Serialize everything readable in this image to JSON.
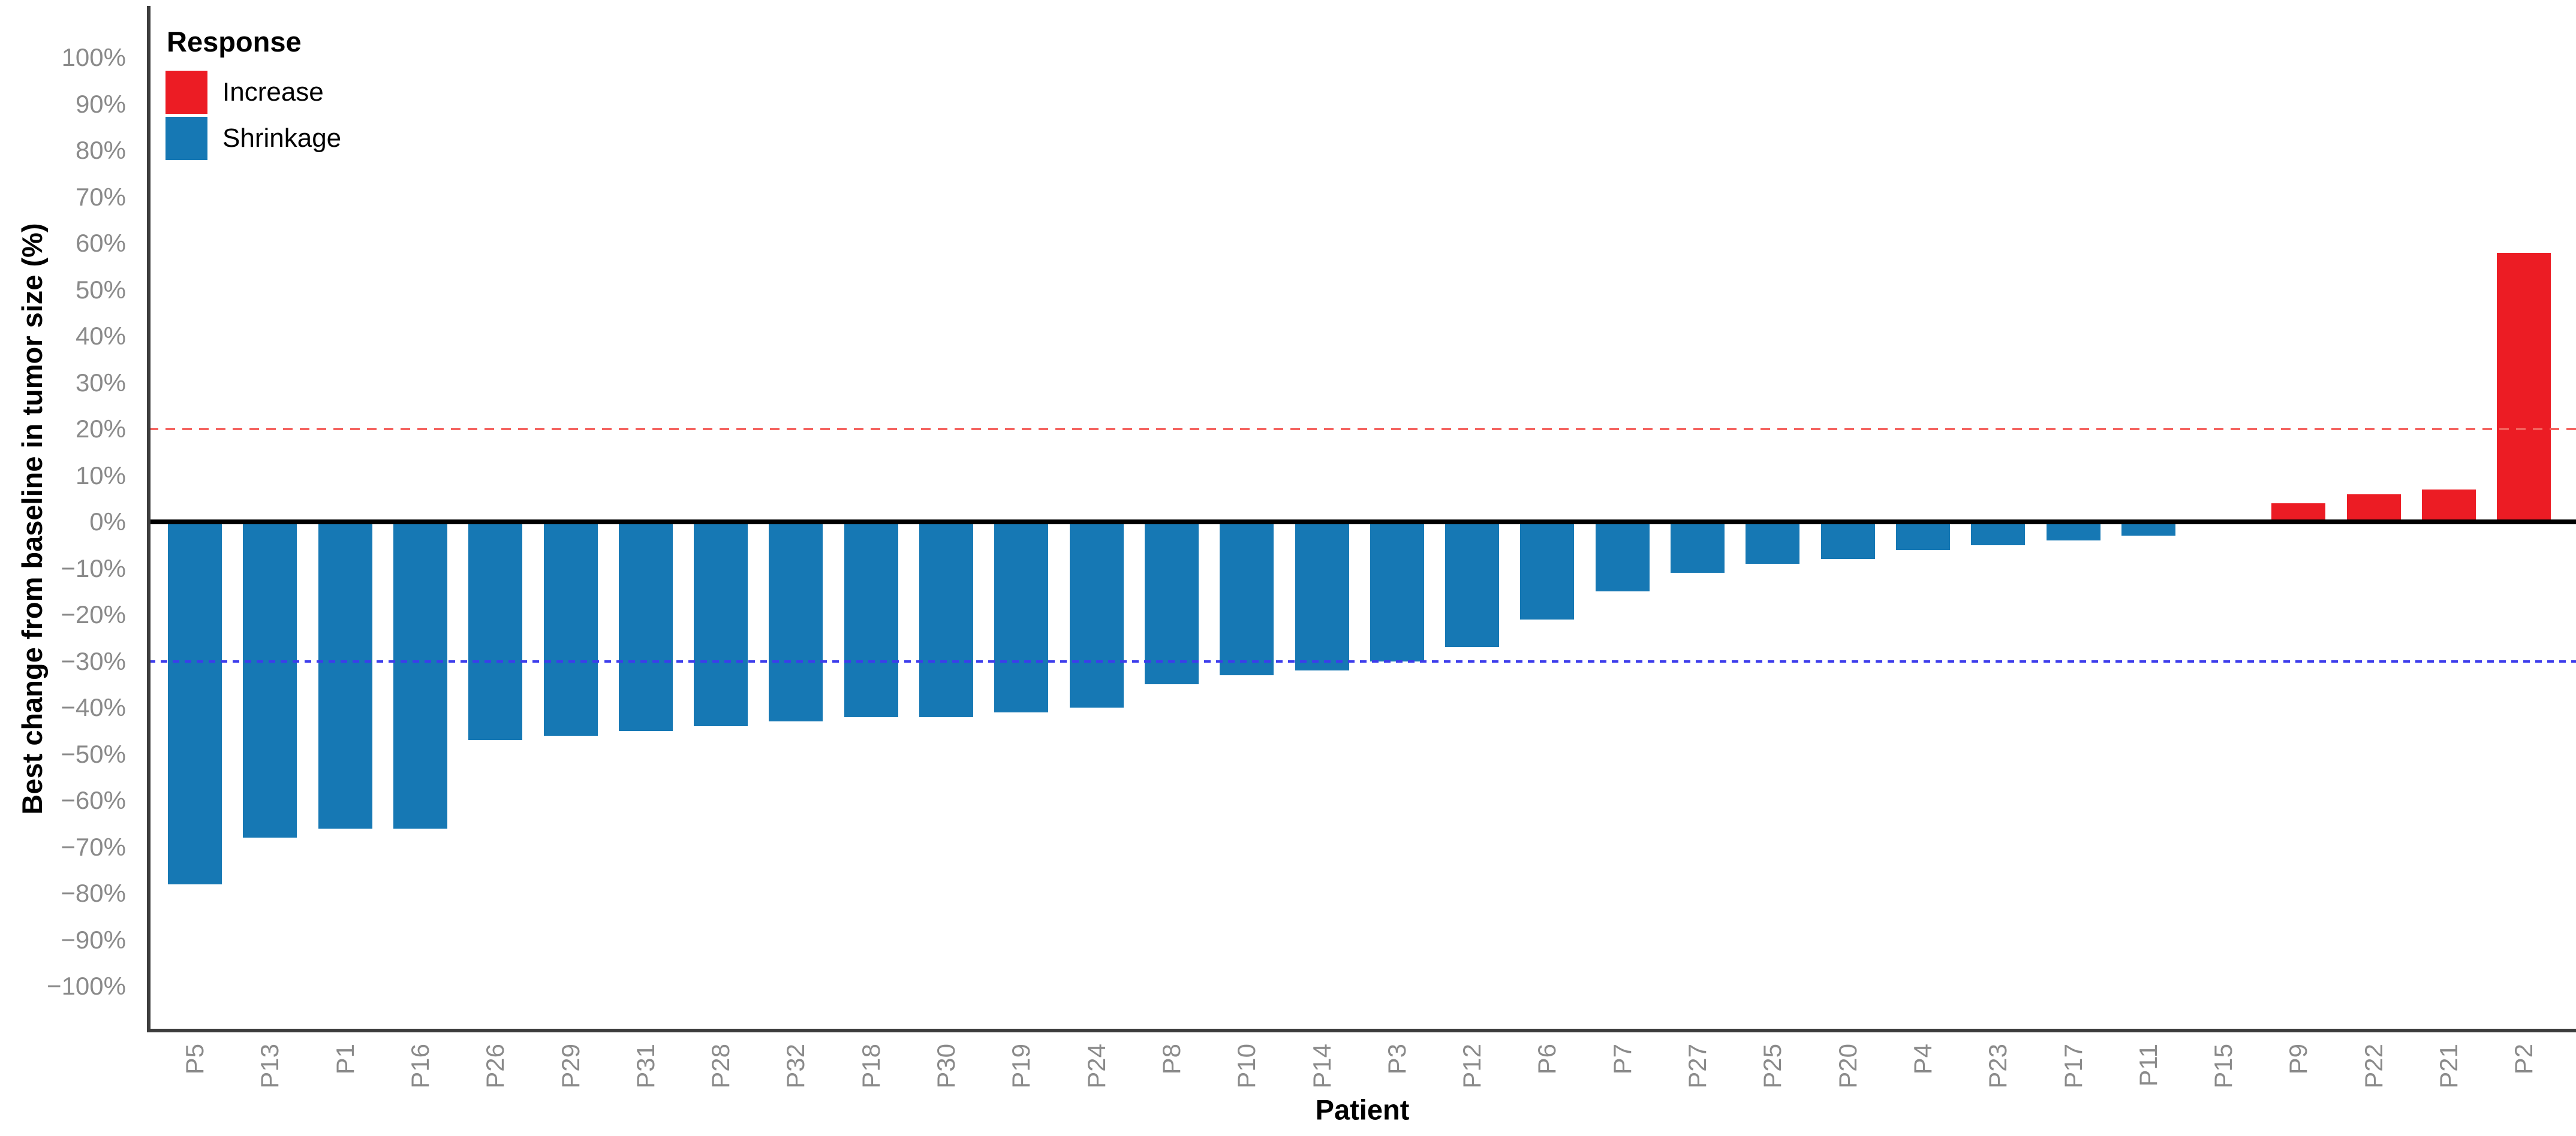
{
  "figure": {
    "legend": {
      "title": "Response",
      "items": [
        {
          "key": "increase",
          "label": "Increase"
        },
        {
          "key": "shrinkage",
          "label": "Shrinkage"
        }
      ]
    },
    "y_axis_title": "Best change from baseline in tumor size (%)",
    "x_axis_title": "Patient"
  },
  "chart_data": {
    "type": "bar",
    "subtype": "waterfall-tumor-response",
    "title": "",
    "xlabel": "Patient",
    "ylabel": "Best change from baseline in tumor size (%)",
    "categories": [
      "P5",
      "P13",
      "P1",
      "P16",
      "P26",
      "P29",
      "P31",
      "P28",
      "P32",
      "P18",
      "P30",
      "P19",
      "P24",
      "P8",
      "P10",
      "P14",
      "P3",
      "P12",
      "P6",
      "P7",
      "P27",
      "P25",
      "P20",
      "P4",
      "P23",
      "P17",
      "P11",
      "P15",
      "P9",
      "P22",
      "P21",
      "P2"
    ],
    "values": [
      -78,
      -68,
      -66,
      -66,
      -47,
      -46,
      -45,
      -44,
      -43,
      -42,
      -42,
      -41,
      -40,
      -35,
      -33,
      -32,
      -30,
      -27,
      -21,
      -15,
      -11,
      -9,
      -8,
      -6,
      -5,
      -4,
      -3,
      0,
      4,
      6,
      7,
      58
    ],
    "responses": [
      "Shrinkage",
      "Shrinkage",
      "Shrinkage",
      "Shrinkage",
      "Shrinkage",
      "Shrinkage",
      "Shrinkage",
      "Shrinkage",
      "Shrinkage",
      "Shrinkage",
      "Shrinkage",
      "Shrinkage",
      "Shrinkage",
      "Shrinkage",
      "Shrinkage",
      "Shrinkage",
      "Shrinkage",
      "Shrinkage",
      "Shrinkage",
      "Shrinkage",
      "Shrinkage",
      "Shrinkage",
      "Shrinkage",
      "Shrinkage",
      "Shrinkage",
      "Shrinkage",
      "Shrinkage",
      "Shrinkage",
      "Increase",
      "Increase",
      "Increase",
      "Increase"
    ],
    "y_ticks": [
      100,
      90,
      80,
      70,
      60,
      50,
      40,
      30,
      20,
      10,
      0,
      -10,
      -20,
      -30,
      -40,
      -50,
      -60,
      -70,
      -80,
      -90,
      -100
    ],
    "y_tick_labels": [
      "100%",
      "90%",
      "80%",
      "70%",
      "60%",
      "50%",
      "40%",
      "30%",
      "20%",
      "10%",
      "0%",
      "−10%",
      "−20%",
      "−30%",
      "−40%",
      "−50%",
      "−60%",
      "−70%",
      "−80%",
      "−90%",
      "−100%"
    ],
    "ylim": [
      -110,
      110
    ],
    "grid": false,
    "legend_position": "top-left-inside",
    "reference_lines": [
      {
        "value": 20,
        "name": "increase-threshold",
        "style": "dashed",
        "color": "#f4625e",
        "dash": 16,
        "gap": 12
      },
      {
        "value": -30,
        "name": "shrinkage-threshold",
        "style": "dashed",
        "color": "#3c3cec",
        "dash": 11,
        "gap": 9
      }
    ],
    "colors": {
      "increase": "#ec1c24",
      "shrinkage": "#1678b4",
      "tick_text": "#8a8a8a",
      "axis_line": "#3d3d3d",
      "zero_line": "#000000"
    }
  }
}
